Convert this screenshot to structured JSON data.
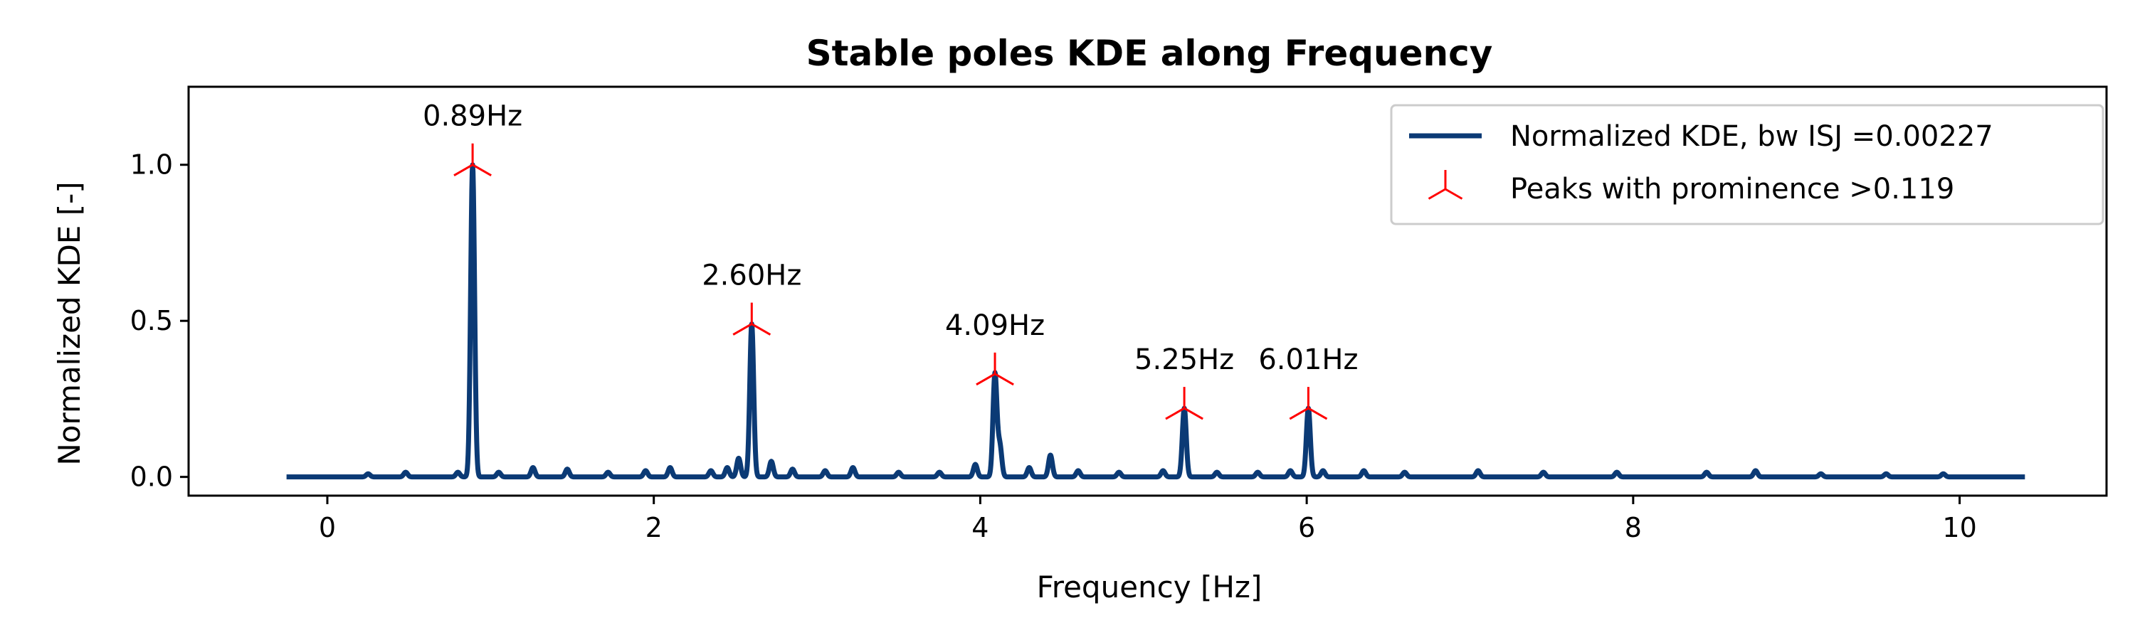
{
  "chart_data": {
    "type": "line",
    "title": "Stable poles KDE along Frequency",
    "xlabel": "Frequency [Hz]",
    "ylabel": "Normalized KDE [-]",
    "xlim": [
      -0.85,
      10.9
    ],
    "ylim": [
      -0.06,
      1.25
    ],
    "xticks": [
      0,
      2,
      4,
      6,
      8,
      10
    ],
    "xtick_labels": [
      "0",
      "2",
      "4",
      "6",
      "8",
      "10"
    ],
    "yticks": [
      0.0,
      0.5,
      1.0
    ],
    "ytick_labels": [
      "0.0",
      "0.5",
      "1.0"
    ],
    "grid": false,
    "legend_position": "top-right",
    "series": [
      {
        "name": "Normalized KDE, bw ISJ =0.00227",
        "color": "#0b3a75",
        "x_range": [
          -0.25,
          10.4
        ],
        "baseline": 0.0,
        "peaks": [
          {
            "x": 0.89,
            "y": 1.0
          },
          {
            "x": 2.6,
            "y": 0.49
          },
          {
            "x": 4.09,
            "y": 0.33
          },
          {
            "x": 5.25,
            "y": 0.22
          },
          {
            "x": 6.01,
            "y": 0.22
          }
        ],
        "minor_bumps": [
          {
            "x": 0.25,
            "y": 0.01
          },
          {
            "x": 0.48,
            "y": 0.015
          },
          {
            "x": 0.8,
            "y": 0.015
          },
          {
            "x": 1.05,
            "y": 0.015
          },
          {
            "x": 1.26,
            "y": 0.03
          },
          {
            "x": 1.47,
            "y": 0.025
          },
          {
            "x": 1.72,
            "y": 0.015
          },
          {
            "x": 1.95,
            "y": 0.02
          },
          {
            "x": 2.1,
            "y": 0.03
          },
          {
            "x": 2.35,
            "y": 0.02
          },
          {
            "x": 2.45,
            "y": 0.03
          },
          {
            "x": 2.52,
            "y": 0.06
          },
          {
            "x": 2.72,
            "y": 0.05
          },
          {
            "x": 2.85,
            "y": 0.025
          },
          {
            "x": 3.05,
            "y": 0.02
          },
          {
            "x": 3.22,
            "y": 0.03
          },
          {
            "x": 3.5,
            "y": 0.015
          },
          {
            "x": 3.75,
            "y": 0.015
          },
          {
            "x": 3.97,
            "y": 0.04
          },
          {
            "x": 4.12,
            "y": 0.1
          },
          {
            "x": 4.3,
            "y": 0.03
          },
          {
            "x": 4.43,
            "y": 0.07
          },
          {
            "x": 4.6,
            "y": 0.02
          },
          {
            "x": 4.85,
            "y": 0.015
          },
          {
            "x": 5.12,
            "y": 0.02
          },
          {
            "x": 5.45,
            "y": 0.015
          },
          {
            "x": 5.7,
            "y": 0.015
          },
          {
            "x": 5.9,
            "y": 0.02
          },
          {
            "x": 6.1,
            "y": 0.02
          },
          {
            "x": 6.35,
            "y": 0.02
          },
          {
            "x": 6.6,
            "y": 0.015
          },
          {
            "x": 7.05,
            "y": 0.02
          },
          {
            "x": 7.45,
            "y": 0.015
          },
          {
            "x": 7.9,
            "y": 0.015
          },
          {
            "x": 8.45,
            "y": 0.015
          },
          {
            "x": 8.75,
            "y": 0.02
          },
          {
            "x": 9.15,
            "y": 0.01
          },
          {
            "x": 9.55,
            "y": 0.01
          },
          {
            "x": 9.9,
            "y": 0.01
          }
        ]
      },
      {
        "name": "Peaks with prominence >0.119",
        "color": "#ff0000",
        "marker": "tri_down",
        "points": [
          {
            "x": 0.89,
            "y": 1.0,
            "label": "0.89Hz"
          },
          {
            "x": 2.6,
            "y": 0.49,
            "label": "2.60Hz"
          },
          {
            "x": 4.09,
            "y": 0.33,
            "label": "4.09Hz"
          },
          {
            "x": 5.25,
            "y": 0.22,
            "label": "5.25Hz"
          },
          {
            "x": 6.01,
            "y": 0.22,
            "label": "6.01Hz"
          }
        ]
      }
    ]
  }
}
